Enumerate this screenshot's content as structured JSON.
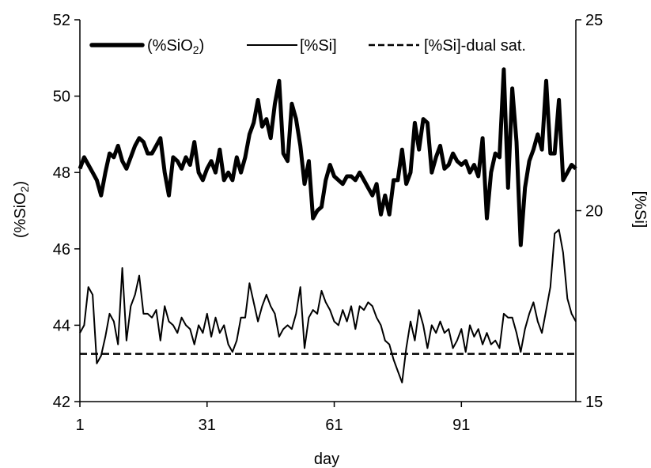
{
  "chart_data": {
    "type": "line",
    "xlabel": "day",
    "ylabel_left": "(%SiO",
    "ylabel_left_sub": "2",
    "ylabel_left_close": ")",
    "ylabel_right": "[%Si]",
    "x_ticks": [
      1,
      31,
      61,
      91
    ],
    "xlim": [
      1,
      118
    ],
    "ylim_left": [
      42,
      52
    ],
    "y_ticks_left": [
      42,
      44,
      46,
      48,
      50,
      52
    ],
    "ylim_right": [
      15,
      25
    ],
    "y_ticks_right": [
      15,
      20,
      25
    ],
    "legend_position": "top",
    "legend": {
      "sio2_prefix": "(%SiO",
      "sio2_sub": "2",
      "sio2_suffix": ")",
      "si": "[%Si]",
      "dual": "[%Si]-dual sat."
    },
    "series": [
      {
        "id": "sio2",
        "axis": "left",
        "style": "thick-solid",
        "values": [
          48.1,
          48.4,
          48.2,
          48.0,
          47.8,
          47.4,
          48.0,
          48.5,
          48.4,
          48.7,
          48.3,
          48.1,
          48.4,
          48.7,
          48.9,
          48.8,
          48.5,
          48.5,
          48.7,
          48.9,
          48.0,
          47.4,
          48.4,
          48.3,
          48.1,
          48.4,
          48.2,
          48.8,
          48.0,
          47.8,
          48.1,
          48.3,
          48.0,
          48.6,
          47.8,
          48.0,
          47.8,
          48.4,
          48.0,
          48.4,
          49.0,
          49.3,
          49.9,
          49.2,
          49.4,
          48.9,
          49.8,
          50.4,
          48.5,
          48.3,
          49.8,
          49.4,
          48.7,
          47.7,
          48.3,
          46.8,
          47.0,
          47.1,
          47.8,
          48.2,
          47.9,
          47.8,
          47.7,
          47.9,
          47.9,
          47.8,
          48.0,
          47.8,
          47.6,
          47.4,
          47.7,
          46.9,
          47.4,
          46.9,
          47.8,
          47.8,
          48.6,
          47.7,
          48.0,
          49.3,
          48.6,
          49.4,
          49.3,
          48.0,
          48.4,
          48.7,
          48.1,
          48.2,
          48.5,
          48.3,
          48.2,
          48.3,
          48.0,
          48.2,
          47.9,
          48.9,
          46.8,
          48.0,
          48.5,
          48.4,
          50.7,
          47.6,
          50.2,
          48.8,
          46.1,
          47.6,
          48.3,
          48.6,
          49.0,
          48.6,
          50.4,
          48.5,
          48.5,
          49.9,
          47.8,
          48.0,
          48.2,
          48.1
        ]
      },
      {
        "id": "si",
        "axis": "right",
        "style": "thin-solid",
        "values": [
          16.8,
          17.0,
          18.0,
          17.8,
          16.0,
          16.2,
          16.7,
          17.3,
          17.1,
          16.5,
          18.5,
          16.6,
          17.5,
          17.8,
          18.3,
          17.3,
          17.3,
          17.2,
          17.4,
          16.6,
          17.5,
          17.1,
          17.0,
          16.8,
          17.2,
          17.0,
          16.9,
          16.5,
          17.0,
          16.8,
          17.3,
          16.7,
          17.2,
          16.8,
          17.0,
          16.5,
          16.3,
          16.6,
          17.2,
          17.2,
          18.1,
          17.6,
          17.1,
          17.5,
          17.8,
          17.5,
          17.3,
          16.7,
          16.9,
          17.0,
          16.9,
          17.3,
          18.0,
          16.4,
          17.2,
          17.4,
          17.3,
          17.9,
          17.6,
          17.4,
          17.1,
          17.0,
          17.4,
          17.1,
          17.5,
          16.9,
          17.5,
          17.4,
          17.6,
          17.5,
          17.2,
          17.0,
          16.6,
          16.5,
          16.1,
          15.8,
          15.5,
          16.4,
          17.1,
          16.6,
          17.4,
          17.0,
          16.4,
          17.0,
          16.8,
          17.1,
          16.8,
          16.9,
          16.4,
          16.6,
          16.9,
          16.3,
          17.0,
          16.7,
          16.9,
          16.5,
          16.8,
          16.5,
          16.6,
          16.4,
          17.3,
          17.2,
          17.2,
          16.8,
          16.3,
          16.9,
          17.3,
          17.6,
          17.1,
          16.8,
          17.4,
          18.0,
          19.4,
          19.5,
          18.9,
          17.7,
          17.3,
          17.1
        ]
      },
      {
        "id": "dual",
        "axis": "left",
        "style": "dashed",
        "values": [
          43.25,
          43.25
        ]
      }
    ]
  }
}
